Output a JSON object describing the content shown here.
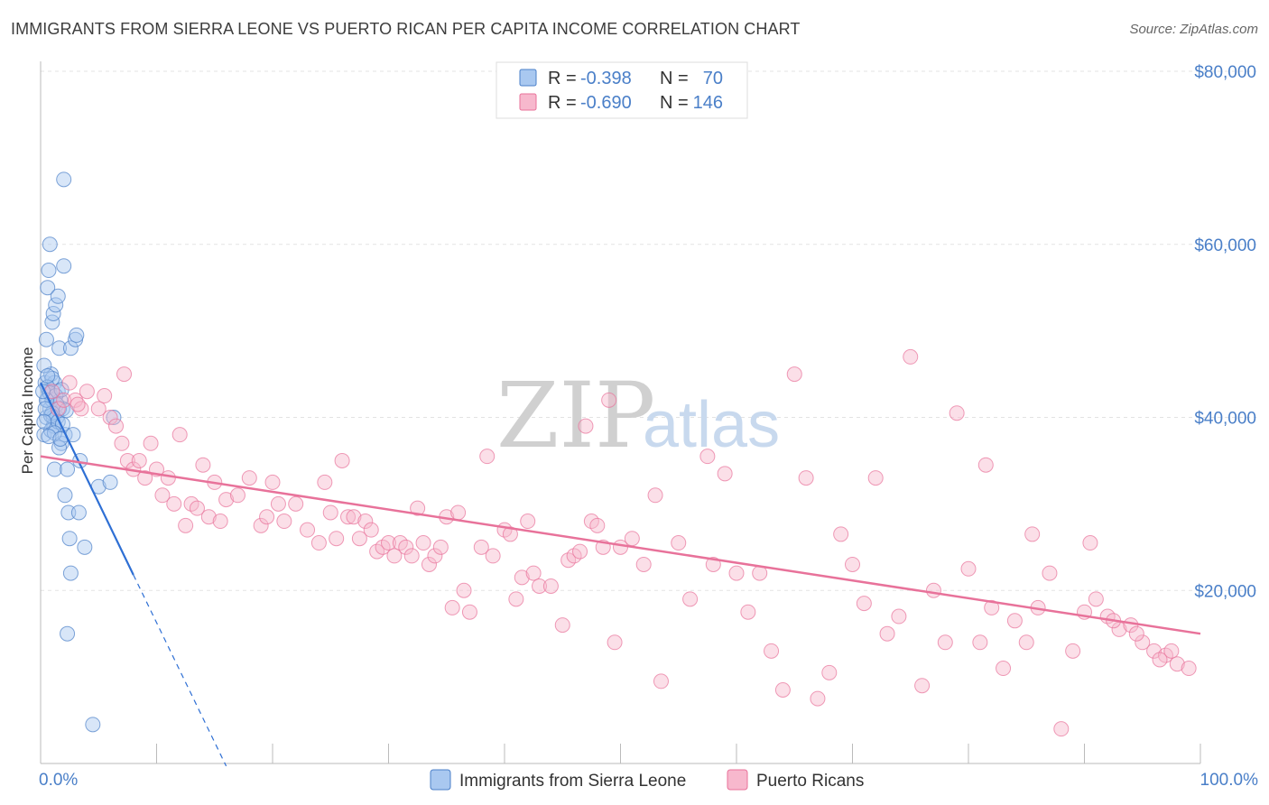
{
  "title": "IMMIGRANTS FROM SIERRA LEONE VS PUERTO RICAN PER CAPITA INCOME CORRELATION CHART",
  "source": "Source: ZipAtlas.com",
  "watermark": {
    "zip": "ZIP",
    "atlas": "atlas"
  },
  "colors": {
    "blue": "#4a7fc8",
    "blue_fill": "#a9c8f0",
    "blue_line": "#2e6fd4",
    "pink": "#e8729a",
    "pink_fill": "#f7b8cd",
    "grid": "#e3e3e3",
    "axis": "#bbbbbb"
  },
  "legend": {
    "r_label": "R =",
    "n_label": "N =",
    "rows": [
      {
        "r": "-0.398",
        "n": "70",
        "color": "blue"
      },
      {
        "r": "-0.690",
        "n": "146",
        "color": "pink"
      }
    ]
  },
  "chart_data": {
    "type": "scatter",
    "ylabel": "Per Capita Income",
    "xlim": [
      0,
      100
    ],
    "ylim": [
      0,
      80000
    ],
    "x_tick_labels": [
      "0.0%",
      "100.0%"
    ],
    "y_ticks": [
      20000,
      40000,
      60000,
      80000
    ],
    "y_tick_labels": [
      "$20,000",
      "$40,000",
      "$60,000",
      "$80,000"
    ],
    "grid": true,
    "series": [
      {
        "name": "Immigrants from Sierra Leone",
        "color": "blue",
        "trend": {
          "x0": 0,
          "y0": 44000,
          "x1": 8,
          "y1": 21800,
          "dash_to_x": 16,
          "dash_to_y": -300
        },
        "points": [
          [
            0.3,
            38
          ],
          [
            0.5,
            40
          ],
          [
            0.6,
            42
          ],
          [
            0.4,
            44
          ],
          [
            0.7,
            43
          ],
          [
            0.8,
            41
          ],
          [
            0.9,
            45
          ],
          [
            1.0,
            42
          ],
          [
            1.1,
            40
          ],
          [
            1.2,
            39
          ],
          [
            0.3,
            46
          ],
          [
            0.5,
            49
          ],
          [
            0.6,
            55
          ],
          [
            0.7,
            57
          ],
          [
            0.8,
            60
          ],
          [
            1.0,
            51
          ],
          [
            1.1,
            52
          ],
          [
            1.3,
            53
          ],
          [
            1.5,
            54
          ],
          [
            2.0,
            57.5
          ],
          [
            1.6,
            48
          ],
          [
            2.6,
            48
          ],
          [
            3.0,
            49
          ],
          [
            3.1,
            49.5
          ],
          [
            1.2,
            44
          ],
          [
            1.5,
            43
          ],
          [
            1.7,
            42
          ],
          [
            1.9,
            41
          ],
          [
            1.4,
            40
          ],
          [
            1.1,
            39
          ],
          [
            0.9,
            38.5
          ],
          [
            1.8,
            37
          ],
          [
            1.6,
            36.5
          ],
          [
            2.1,
            38
          ],
          [
            2.8,
            38
          ],
          [
            3.4,
            35
          ],
          [
            1.2,
            34
          ],
          [
            2.3,
            34
          ],
          [
            2.1,
            31
          ],
          [
            2.4,
            29
          ],
          [
            3.3,
            29
          ],
          [
            2.5,
            26
          ],
          [
            3.8,
            25
          ],
          [
            2.6,
            22
          ],
          [
            5.0,
            32
          ],
          [
            6.0,
            32.5
          ],
          [
            2.3,
            15
          ],
          [
            4.5,
            4.5
          ],
          [
            2.0,
            67.5
          ],
          [
            1.0,
            44.5
          ],
          [
            0.6,
            43.5
          ],
          [
            0.8,
            42.8
          ],
          [
            1.3,
            42.5
          ],
          [
            1.4,
            41.5
          ],
          [
            1.6,
            41
          ],
          [
            1.0,
            40.5
          ],
          [
            0.9,
            40.2
          ],
          [
            1.5,
            39.5
          ],
          [
            1.9,
            39.2
          ],
          [
            1.2,
            38.2
          ],
          [
            0.7,
            37.8
          ],
          [
            1.7,
            37.5
          ],
          [
            0.5,
            42
          ],
          [
            0.4,
            41
          ],
          [
            0.2,
            43
          ],
          [
            0.3,
            39.5
          ],
          [
            2.2,
            40.8
          ],
          [
            1.8,
            43.2
          ],
          [
            6.3,
            40
          ],
          [
            0.6,
            44.8
          ]
        ]
      },
      {
        "name": "Puerto Ricans",
        "color": "pink",
        "trend": {
          "x0": 0,
          "y0": 35500,
          "x1": 100,
          "y1": 15000
        },
        "points": [
          [
            1.0,
            43
          ],
          [
            1.5,
            41
          ],
          [
            2.0,
            42
          ],
          [
            2.5,
            44
          ],
          [
            3.0,
            42
          ],
          [
            3.5,
            41
          ],
          [
            4.0,
            43
          ],
          [
            5.0,
            41
          ],
          [
            6.0,
            40
          ],
          [
            6.5,
            39
          ],
          [
            7.0,
            37
          ],
          [
            7.5,
            35
          ],
          [
            8.0,
            34
          ],
          [
            8.5,
            35
          ],
          [
            9.0,
            33
          ],
          [
            9.5,
            37
          ],
          [
            10.0,
            34
          ],
          [
            10.5,
            31
          ],
          [
            11.0,
            33
          ],
          [
            11.5,
            30
          ],
          [
            12.0,
            38
          ],
          [
            12.5,
            27.5
          ],
          [
            13.0,
            30
          ],
          [
            13.5,
            29.5
          ],
          [
            14.0,
            34.5
          ],
          [
            14.5,
            28.5
          ],
          [
            15.0,
            32.5
          ],
          [
            15.5,
            28
          ],
          [
            16.0,
            30.5
          ],
          [
            17.0,
            31
          ],
          [
            18.0,
            33
          ],
          [
            19.0,
            27.5
          ],
          [
            19.5,
            28.5
          ],
          [
            20.0,
            32.5
          ],
          [
            20.5,
            30
          ],
          [
            21.0,
            28
          ],
          [
            22.0,
            30
          ],
          [
            23.0,
            27
          ],
          [
            24.0,
            25.5
          ],
          [
            24.5,
            32.5
          ],
          [
            25.0,
            29
          ],
          [
            25.5,
            26
          ],
          [
            26.0,
            35
          ],
          [
            26.5,
            28.5
          ],
          [
            27.0,
            28.5
          ],
          [
            27.5,
            26
          ],
          [
            28.0,
            28
          ],
          [
            28.5,
            27
          ],
          [
            29.0,
            24.5
          ],
          [
            29.5,
            25
          ],
          [
            30.0,
            25.5
          ],
          [
            30.5,
            24
          ],
          [
            31.0,
            25.5
          ],
          [
            31.5,
            25
          ],
          [
            32.0,
            24
          ],
          [
            32.5,
            29.5
          ],
          [
            33.0,
            25.5
          ],
          [
            33.5,
            23
          ],
          [
            34.0,
            24
          ],
          [
            34.5,
            25
          ],
          [
            35.0,
            28.5
          ],
          [
            35.5,
            18
          ],
          [
            36.0,
            29
          ],
          [
            36.5,
            20
          ],
          [
            37.0,
            17.5
          ],
          [
            38.0,
            25
          ],
          [
            38.5,
            35.5
          ],
          [
            39.0,
            24
          ],
          [
            40.0,
            27
          ],
          [
            40.5,
            26.5
          ],
          [
            41.0,
            19
          ],
          [
            41.5,
            21.5
          ],
          [
            42.0,
            28
          ],
          [
            42.5,
            22
          ],
          [
            43.0,
            20.5
          ],
          [
            44.0,
            20.5
          ],
          [
            45.0,
            16
          ],
          [
            45.5,
            23.5
          ],
          [
            46.0,
            24
          ],
          [
            46.5,
            24.5
          ],
          [
            47.0,
            39
          ],
          [
            47.5,
            28
          ],
          [
            48.0,
            27.5
          ],
          [
            48.5,
            25
          ],
          [
            49.0,
            42
          ],
          [
            49.5,
            14
          ],
          [
            50.0,
            25
          ],
          [
            51.0,
            26
          ],
          [
            52.0,
            23
          ],
          [
            53.0,
            31
          ],
          [
            53.5,
            9.5
          ],
          [
            55.0,
            25.5
          ],
          [
            56.0,
            19
          ],
          [
            57.5,
            35.5
          ],
          [
            58.0,
            23
          ],
          [
            59.0,
            33.5
          ],
          [
            60.0,
            22
          ],
          [
            61.0,
            17.5
          ],
          [
            62.0,
            22
          ],
          [
            63.0,
            13
          ],
          [
            64.0,
            8.5
          ],
          [
            65.0,
            45
          ],
          [
            66.0,
            33
          ],
          [
            67.0,
            7.5
          ],
          [
            68.0,
            10.5
          ],
          [
            69.0,
            26.5
          ],
          [
            70.0,
            23
          ],
          [
            71.0,
            18.5
          ],
          [
            72.0,
            33
          ],
          [
            73.0,
            15
          ],
          [
            74.0,
            17
          ],
          [
            75.0,
            47
          ],
          [
            76.0,
            9
          ],
          [
            77.0,
            20
          ],
          [
            78.0,
            14
          ],
          [
            79.0,
            40.5
          ],
          [
            80.0,
            22.5
          ],
          [
            81.0,
            14
          ],
          [
            81.5,
            34.5
          ],
          [
            82.0,
            18
          ],
          [
            83.0,
            11
          ],
          [
            84.0,
            16.5
          ],
          [
            85.0,
            14
          ],
          [
            86.0,
            18
          ],
          [
            87.0,
            22
          ],
          [
            88.0,
            4
          ],
          [
            89.0,
            13
          ],
          [
            90.0,
            17.5
          ],
          [
            91.0,
            19
          ],
          [
            92.0,
            17
          ],
          [
            93.0,
            15.5
          ],
          [
            94.0,
            16
          ],
          [
            95.0,
            14
          ],
          [
            96.0,
            13
          ],
          [
            97.0,
            12.5
          ],
          [
            98.0,
            11.5
          ],
          [
            99.0,
            11
          ],
          [
            90.5,
            25.5
          ],
          [
            85.5,
            26.5
          ],
          [
            92.5,
            16.5
          ],
          [
            94.5,
            15
          ],
          [
            96.5,
            12
          ],
          [
            97.5,
            13
          ],
          [
            3.2,
            41.5
          ],
          [
            5.5,
            42.5
          ],
          [
            7.2,
            45
          ]
        ]
      }
    ]
  }
}
